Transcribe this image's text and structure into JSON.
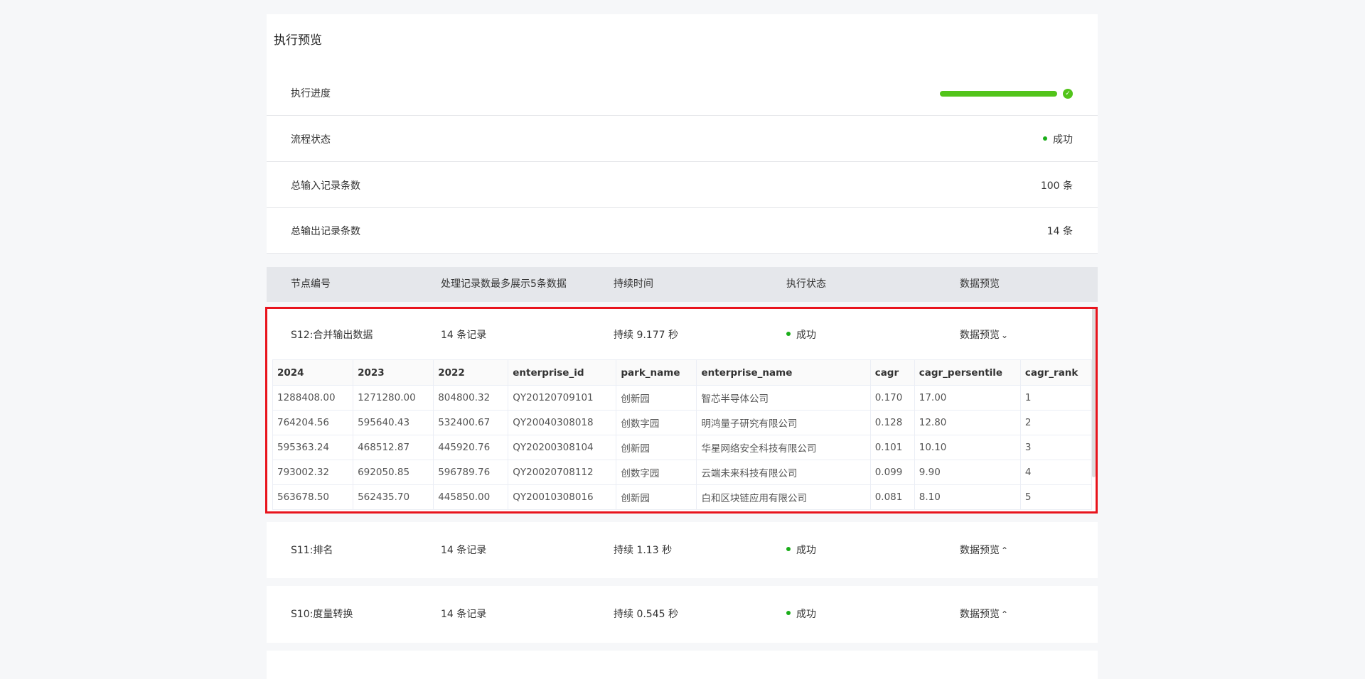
{
  "title": "执行预览",
  "summary": {
    "progress_label": "执行进度",
    "progress": 1.0,
    "status_label": "流程状态",
    "status": "成功",
    "input_label": "总输入记录条数",
    "input_value": "100 条",
    "output_label": "总输出记录条数",
    "output_value": "14 条"
  },
  "table_header": [
    "节点编号",
    "处理记录数最多展示5条数据",
    "持续时间",
    "执行状态",
    "数据预览"
  ],
  "colors": {
    "success": "#52c41a",
    "highlight": "#e8141d"
  },
  "nodes": [
    {
      "id": "S12:合并输出数据",
      "records": "14 条记录",
      "duration": "持续 9.177 秒",
      "status": "成功",
      "preview": "数据预览",
      "expanded": true
    },
    {
      "id": "S11:排名",
      "records": "14 条记录",
      "duration": "持续 1.13 秒",
      "status": "成功",
      "preview": "数据预览",
      "expanded": false
    },
    {
      "id": "S10:度量转换",
      "records": "14 条记录",
      "duration": "持续 0.545 秒",
      "status": "成功",
      "preview": "数据预览",
      "expanded": false
    }
  ],
  "preview": {
    "columns": [
      "2024",
      "2023",
      "2022",
      "enterprise_id",
      "park_name",
      "enterprise_name",
      "cagr",
      "cagr_persentile",
      "cagr_rank"
    ],
    "rows": [
      [
        "1288408.00",
        "1271280.00",
        "804800.32",
        "QY20120709101",
        "创新园",
        "智芯半导体公司",
        "0.170",
        "17.00",
        "1"
      ],
      [
        "764204.56",
        "595640.43",
        "532400.67",
        "QY20040308018",
        "创数字园",
        "明鸿量子研究有限公司",
        "0.128",
        "12.80",
        "2"
      ],
      [
        "595363.24",
        "468512.87",
        "445920.76",
        "QY20200308104",
        "创新园",
        "华星网络安全科技有限公司",
        "0.101",
        "10.10",
        "3"
      ],
      [
        "793002.32",
        "692050.85",
        "596789.76",
        "QY20020708112",
        "创数字园",
        "云端未来科技有限公司",
        "0.099",
        "9.90",
        "4"
      ],
      [
        "563678.50",
        "562435.70",
        "445850.00",
        "QY20010308016",
        "创新园",
        "白和区块链应用有限公司",
        "0.081",
        "8.10",
        "5"
      ]
    ]
  }
}
